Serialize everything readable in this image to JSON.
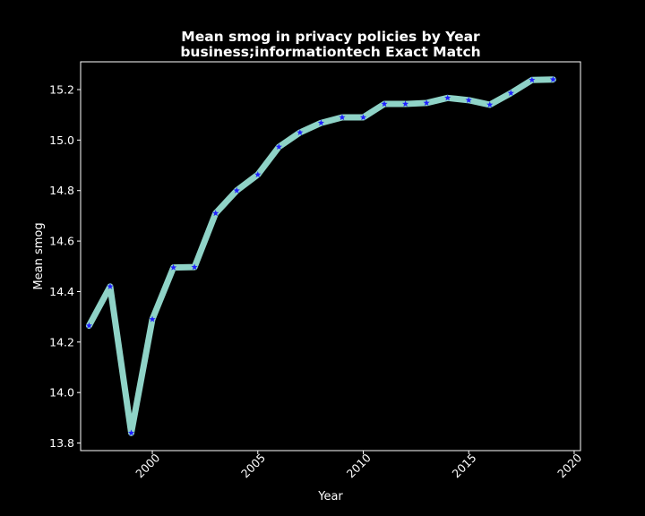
{
  "chart_data": {
    "type": "line",
    "title": "Mean smog in privacy policies by Year",
    "subtitle": "business;informationtech Exact Match",
    "xlabel": "Year",
    "ylabel": "Mean smog",
    "xlim": [
      1996.6,
      2020.3
    ],
    "ylim": [
      13.77,
      15.31
    ],
    "x_ticks": [
      2000,
      2005,
      2010,
      2015,
      2020
    ],
    "y_ticks": [
      13.8,
      14.0,
      14.2,
      14.4,
      14.6,
      14.8,
      15.0,
      15.2
    ],
    "y_tick_labels": [
      "13.8",
      "14.0",
      "14.2",
      "14.4",
      "14.6",
      "14.8",
      "15.0",
      "15.2"
    ],
    "grid": false,
    "series": [
      {
        "x": [
          1997,
          1998,
          1999,
          2000,
          2001,
          2002,
          2003,
          2004,
          2005,
          2006,
          2007,
          2008,
          2009,
          2010,
          2011,
          2012,
          2013,
          2014,
          2015,
          2016,
          2017,
          2018,
          2019
        ],
        "values": [
          14.265,
          14.42,
          13.84,
          14.29,
          14.495,
          14.497,
          14.71,
          14.8,
          14.863,
          14.973,
          15.03,
          15.068,
          15.09,
          15.09,
          15.143,
          15.143,
          15.147,
          15.167,
          15.158,
          15.14,
          15.186,
          15.238,
          15.24
        ],
        "line_color": "#8fd3c7",
        "marker": "star",
        "marker_color": "#1f1fff"
      }
    ]
  }
}
